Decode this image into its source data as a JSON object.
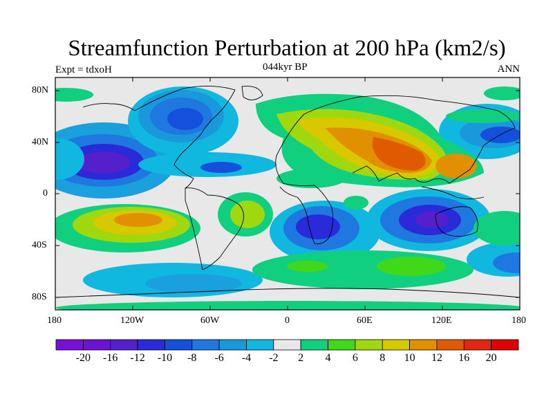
{
  "title": "Streamfunction Perturbation at 200 hPa (km2/s)",
  "subtitle_left": "Expt = tdxoH",
  "subtitle_center": "044kyr BP",
  "subtitle_right": "ANN",
  "map": {
    "projection": "cylindrical equidistant",
    "lon_range": [
      -180,
      180
    ],
    "lat_range": [
      -90,
      90
    ],
    "lat_ticks": [
      "80N",
      "40N",
      "0",
      "40S",
      "80S"
    ],
    "lon_ticks": [
      "180",
      "120W",
      "60W",
      "0",
      "60E",
      "120E",
      "180"
    ],
    "background_color": "#e8e8e8",
    "coastlines": true
  },
  "colorbar": {
    "labels": [
      "-20",
      "-16",
      "-12",
      "-10",
      "-8",
      "-6",
      "-4",
      "-2",
      "2",
      "4",
      "6",
      "8",
      "10",
      "12",
      "16",
      "20"
    ],
    "colors": [
      "#7a10d8",
      "#6a14d0",
      "#5420cc",
      "#2a2ad8",
      "#1450dc",
      "#1e78e0",
      "#1a98dc",
      "#10b8e0",
      "#e8e8e8",
      "#10d080",
      "#40d818",
      "#a0d810",
      "#d8c800",
      "#e09000",
      "#e05a00",
      "#e02810",
      "#e00000"
    ]
  }
}
